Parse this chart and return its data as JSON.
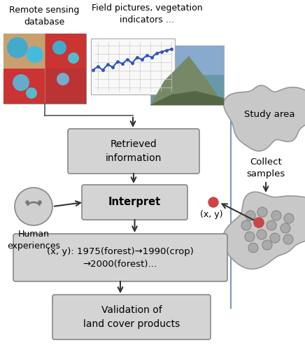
{
  "bg_color": "#ffffff",
  "box_color": "#d4d4d4",
  "box_edge_color": "#888888",
  "box_text_color": "#000000",
  "arrow_color": "#333333",
  "smiley_color": "#d0d0d0",
  "blob_color": "#c8c8c8",
  "blob_edge_color": "#999999",
  "blue_line_color": "#7799bb",
  "sample_dot_color": "#aaaaaa",
  "sample_red_color": "#cc4444",
  "label_remote": "Remote sensing\ndatabase",
  "label_field": "Field pictures, vegetation\nindicators …",
  "label_retrieved": "Retrieved\ninformation",
  "label_interpret": "Interpret",
  "label_sequence": "(x, y): 1975(forest)→1990(crop)\n→2000(forest)…",
  "label_validation": "Validation of\nland cover products",
  "label_human": "Human\nexperiences",
  "label_study": "Study area",
  "label_collect": "Collect\nsamples",
  "label_xy": "(x, y)"
}
